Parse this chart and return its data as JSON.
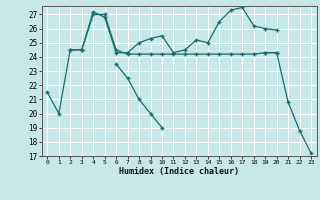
{
  "background_color": "#c8e8e8",
  "grid_color": "#b0d4d4",
  "line_color": "#1a6b6b",
  "xlabel": "Humidex (Indice chaleur)",
  "xlim": [
    -0.5,
    23.5
  ],
  "ylim": [
    17,
    27.6
  ],
  "yticks": [
    17,
    18,
    19,
    20,
    21,
    22,
    23,
    24,
    25,
    26,
    27
  ],
  "xticks": [
    0,
    1,
    2,
    3,
    4,
    5,
    6,
    7,
    8,
    9,
    10,
    11,
    12,
    13,
    14,
    15,
    16,
    17,
    18,
    19,
    20,
    21,
    22,
    23
  ],
  "line1": {
    "x": [
      0,
      1,
      2,
      3,
      4,
      5,
      6,
      7,
      8,
      9,
      10,
      11,
      12,
      13,
      14,
      15,
      16,
      17,
      18,
      19,
      20
    ],
    "y": [
      21.5,
      20.0,
      24.5,
      24.5,
      27.0,
      27.0,
      24.5,
      24.2,
      24.2,
      24.2,
      24.2,
      24.2,
      24.2,
      24.2,
      24.2,
      24.2,
      24.2,
      24.2,
      24.2,
      24.3,
      24.3
    ]
  },
  "line2": {
    "x": [
      2,
      3,
      4,
      5,
      6,
      7,
      8,
      9,
      10,
      11,
      12,
      13,
      14,
      15,
      16,
      17,
      18,
      19,
      20
    ],
    "y": [
      24.5,
      24.5,
      27.2,
      26.8,
      24.3,
      24.3,
      25.0,
      25.3,
      25.5,
      24.3,
      24.5,
      25.2,
      25.0,
      26.5,
      27.3,
      27.5,
      26.2,
      26.0,
      25.9
    ]
  },
  "line3": {
    "x": [
      6,
      7,
      8,
      9,
      10
    ],
    "y": [
      23.5,
      22.5,
      21.0,
      20.0,
      19.0
    ]
  },
  "line4": {
    "x": [
      19,
      20,
      21,
      22,
      23
    ],
    "y": [
      24.3,
      24.3,
      20.8,
      18.8,
      17.2
    ]
  }
}
